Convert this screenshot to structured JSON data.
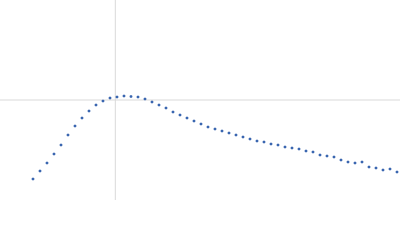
{
  "chart_data": {
    "type": "scatter",
    "x": [
      0.495,
      0.6,
      0.705,
      0.81,
      0.915,
      1.02,
      1.125,
      1.23,
      1.335,
      1.44,
      1.545,
      1.65,
      1.755,
      1.86,
      1.965,
      2.07,
      2.175,
      2.28,
      2.385,
      2.49,
      2.595,
      2.7,
      2.805,
      2.91,
      3.015,
      3.12,
      3.225,
      3.33,
      3.435,
      3.54,
      3.645,
      3.75,
      3.855,
      3.96,
      4.065,
      4.17,
      4.275,
      4.38,
      4.485,
      4.59,
      4.695,
      4.8,
      4.905,
      5.01,
      5.115,
      5.22,
      5.325,
      5.43,
      5.535,
      5.64,
      5.745,
      5.85,
      5.955
    ],
    "values": [
      0.21,
      0.29,
      0.37,
      0.46,
      0.55,
      0.65,
      0.74,
      0.82,
      0.89,
      0.95,
      0.99,
      1.02,
      1.03,
      1.04,
      1.035,
      1.03,
      1.01,
      0.98,
      0.95,
      0.92,
      0.88,
      0.85,
      0.82,
      0.79,
      0.76,
      0.73,
      0.71,
      0.69,
      0.67,
      0.65,
      0.63,
      0.61,
      0.59,
      0.58,
      0.56,
      0.55,
      0.53,
      0.52,
      0.51,
      0.49,
      0.48,
      0.45,
      0.44,
      0.43,
      0.4,
      0.38,
      0.37,
      0.38,
      0.33,
      0.32,
      0.3,
      0.31,
      0.28
    ],
    "color": "#3a66b0",
    "xlim": [
      0,
      6
    ],
    "ylim": [
      0,
      2
    ],
    "reference_lines": {
      "x": 1.73,
      "y": 1
    }
  }
}
